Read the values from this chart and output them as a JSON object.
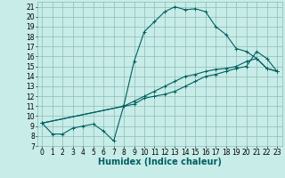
{
  "xlabel": "Humidex (Indice chaleur)",
  "bg_color": "#c8ece8",
  "grid_color": "#8bbcb8",
  "line_color": "#006060",
  "xlim": [
    -0.5,
    23.5
  ],
  "ylim": [
    7,
    21.5
  ],
  "xticks": [
    0,
    1,
    2,
    3,
    4,
    5,
    6,
    7,
    8,
    9,
    10,
    11,
    12,
    13,
    14,
    15,
    16,
    17,
    18,
    19,
    20,
    21,
    22,
    23
  ],
  "yticks": [
    7,
    8,
    9,
    10,
    11,
    12,
    13,
    14,
    15,
    16,
    17,
    18,
    19,
    20,
    21
  ],
  "line1_x": [
    0,
    1,
    2,
    3,
    4,
    5,
    6,
    7,
    8,
    9,
    10,
    11,
    12,
    13,
    14,
    15,
    16,
    17,
    18,
    19,
    20,
    21,
    22,
    23
  ],
  "line1_y": [
    9.3,
    8.2,
    8.2,
    8.8,
    9.0,
    9.2,
    8.5,
    7.5,
    11.1,
    15.5,
    18.5,
    19.5,
    20.5,
    21.0,
    20.7,
    20.8,
    20.5,
    19.0,
    18.2,
    16.8,
    16.5,
    15.8,
    14.8,
    14.5
  ],
  "line2_x": [
    0,
    8,
    9,
    10,
    11,
    12,
    13,
    14,
    15,
    16,
    17,
    18,
    19,
    20,
    21,
    22,
    23
  ],
  "line2_y": [
    9.3,
    11.0,
    11.5,
    12.0,
    12.5,
    13.0,
    13.5,
    14.0,
    14.2,
    14.5,
    14.7,
    14.8,
    15.0,
    15.5,
    15.8,
    14.8,
    14.5
  ],
  "line3_x": [
    0,
    8,
    9,
    10,
    11,
    12,
    13,
    14,
    15,
    16,
    17,
    18,
    19,
    20,
    21,
    22,
    23
  ],
  "line3_y": [
    9.3,
    11.0,
    11.2,
    11.8,
    12.0,
    12.2,
    12.5,
    13.0,
    13.5,
    14.0,
    14.2,
    14.5,
    14.8,
    15.0,
    16.5,
    15.8,
    14.5
  ],
  "marker": "+",
  "markersize": 3,
  "linewidth": 0.8,
  "xlabel_fontsize": 7,
  "tick_fontsize": 5.5
}
